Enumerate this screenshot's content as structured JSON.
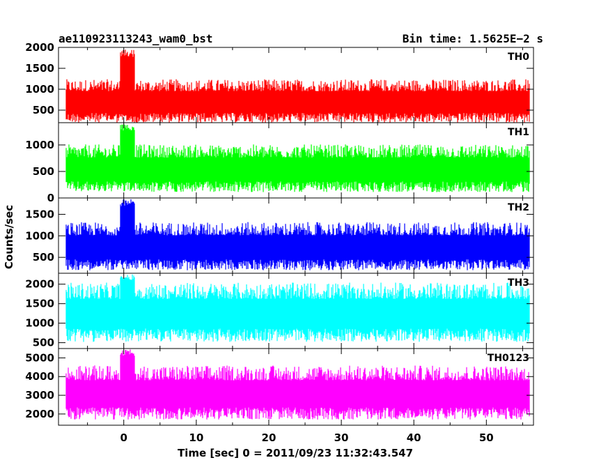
{
  "header": {
    "left_title": "ae110923113243_wam0_bst",
    "right_title": "Bin time: 1.5625E−2 s"
  },
  "chart_data": {
    "type": "line",
    "xlabel": "Time [sec] 0 = 2011/09/23 11:32:43.547",
    "ylabel": "Counts/sec",
    "xlim": [
      -9,
      56.5
    ],
    "x_ticks": [
      0,
      10,
      20,
      30,
      40,
      50
    ],
    "x_range": [
      -8,
      56
    ],
    "bin_time_s": 0.015625,
    "panels": [
      {
        "name": "TH0",
        "color": "#ff0000",
        "ylim": [
          200,
          2000
        ],
        "y_ticks": [
          500,
          1000,
          1500,
          2000
        ],
        "base": 720,
        "spread": 520,
        "burst_peak": 1950,
        "series": [
          {
            "x_start": -8,
            "x_end": 56,
            "min": 150,
            "max": 1950
          }
        ]
      },
      {
        "name": "TH1",
        "color": "#00ff00",
        "ylim": [
          0,
          1420
        ],
        "y_ticks": [
          0,
          500,
          1000
        ],
        "base": 560,
        "spread": 450,
        "burst_peak": 1400,
        "series": [
          {
            "x_start": -8,
            "x_end": 56,
            "min": 80,
            "max": 1400
          }
        ]
      },
      {
        "name": "TH2",
        "color": "#0000ff",
        "ylim": [
          130,
          1880
        ],
        "y_ticks": [
          500,
          1000,
          1500
        ],
        "base": 760,
        "spread": 560,
        "burst_peak": 1850,
        "series": [
          {
            "x_start": -8,
            "x_end": 56,
            "min": 140,
            "max": 1850
          }
        ]
      },
      {
        "name": "TH3",
        "color": "#00ffff",
        "ylim": [
          350,
          2280
        ],
        "y_ticks": [
          500,
          1000,
          1500,
          2000
        ],
        "base": 1280,
        "spread": 760,
        "burst_peak": 2250,
        "series": [
          {
            "x_start": -8,
            "x_end": 56,
            "min": 350,
            "max": 2250
          }
        ]
      },
      {
        "name": "TH0123",
        "color": "#ff00ff",
        "ylim": [
          1400,
          5500
        ],
        "y_ticks": [
          2000,
          3000,
          4000,
          5000
        ],
        "base": 3150,
        "spread": 1450,
        "burst_peak": 5450,
        "series": [
          {
            "x_start": -8,
            "x_end": 56,
            "min": 1450,
            "max": 5450
          }
        ]
      }
    ]
  }
}
